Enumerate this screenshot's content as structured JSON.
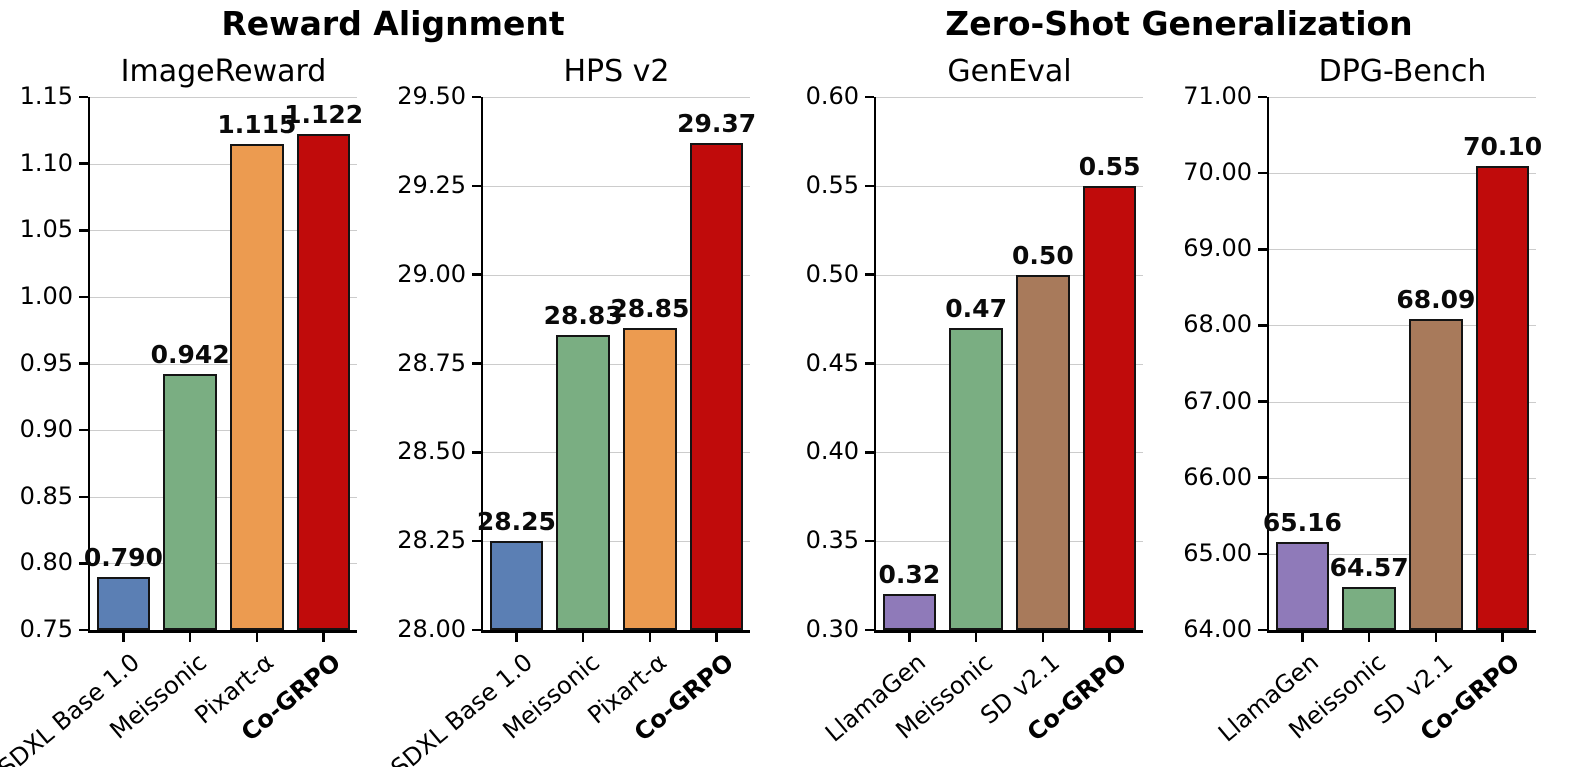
{
  "figure": {
    "suptitles": [
      {
        "label": "Reward Alignment"
      },
      {
        "label": "Zero-Shot Generalization"
      }
    ],
    "background": "#ffffff",
    "gridline_color": "#cccccc",
    "axis_color": "#000000"
  },
  "chart_data": [
    {
      "type": "bar",
      "title": "ImageReward",
      "group": "Reward Alignment",
      "categories": [
        "SDXL Base 1.0",
        "Meissonic",
        "Pixart-α",
        "Co-GRPO"
      ],
      "values": [
        0.79,
        0.942,
        1.115,
        1.122
      ],
      "value_labels": [
        "0.790",
        "0.942",
        "1.115",
        "1.122"
      ],
      "bar_colors": [
        "#5b7fb4",
        "#7aae82",
        "#ec9b50",
        "#c00b0b"
      ],
      "emphasized_category": "Co-GRPO",
      "xlabel": "",
      "ylabel": "",
      "ylim": [
        0.75,
        1.15
      ],
      "ytick_step": 0.05,
      "ytick_decimals": 2,
      "grid": true,
      "legend": "none"
    },
    {
      "type": "bar",
      "title": "HPS v2",
      "group": "Reward Alignment",
      "categories": [
        "SDXL Base 1.0",
        "Meissonic",
        "Pixart-α",
        "Co-GRPO"
      ],
      "values": [
        28.25,
        28.83,
        28.85,
        29.37
      ],
      "value_labels": [
        "28.25",
        "28.83",
        "28.85",
        "29.37"
      ],
      "bar_colors": [
        "#5b7fb4",
        "#7aae82",
        "#ec9b50",
        "#c00b0b"
      ],
      "emphasized_category": "Co-GRPO",
      "xlabel": "",
      "ylabel": "",
      "ylim": [
        28.0,
        29.5
      ],
      "ytick_step": 0.25,
      "ytick_decimals": 2,
      "grid": true,
      "legend": "none"
    },
    {
      "type": "bar",
      "title": "GenEval",
      "group": "Zero-Shot Generalization",
      "categories": [
        "LlamaGen",
        "Meissonic",
        "SD v2.1",
        "Co-GRPO"
      ],
      "values": [
        0.32,
        0.47,
        0.5,
        0.55
      ],
      "value_labels": [
        "0.32",
        "0.47",
        "0.50",
        "0.55"
      ],
      "bar_colors": [
        "#8f7ab9",
        "#7aae82",
        "#a87a5b",
        "#c00b0b"
      ],
      "emphasized_category": "Co-GRPO",
      "xlabel": "",
      "ylabel": "",
      "ylim": [
        0.3,
        0.6
      ],
      "ytick_step": 0.05,
      "ytick_decimals": 2,
      "grid": true,
      "legend": "none"
    },
    {
      "type": "bar",
      "title": "DPG-Bench",
      "group": "Zero-Shot Generalization",
      "categories": [
        "LlamaGen",
        "Meissonic",
        "SD v2.1",
        "Co-GRPO"
      ],
      "values": [
        65.16,
        64.57,
        68.09,
        70.1
      ],
      "value_labels": [
        "65.16",
        "64.57",
        "68.09",
        "70.10"
      ],
      "bar_colors": [
        "#8f7ab9",
        "#7aae82",
        "#a87a5b",
        "#c00b0b"
      ],
      "emphasized_category": "Co-GRPO",
      "xlabel": "",
      "ylabel": "",
      "ylim": [
        64.0,
        71.0
      ],
      "ytick_step": 1.0,
      "ytick_decimals": 2,
      "grid": true,
      "legend": "none"
    }
  ]
}
